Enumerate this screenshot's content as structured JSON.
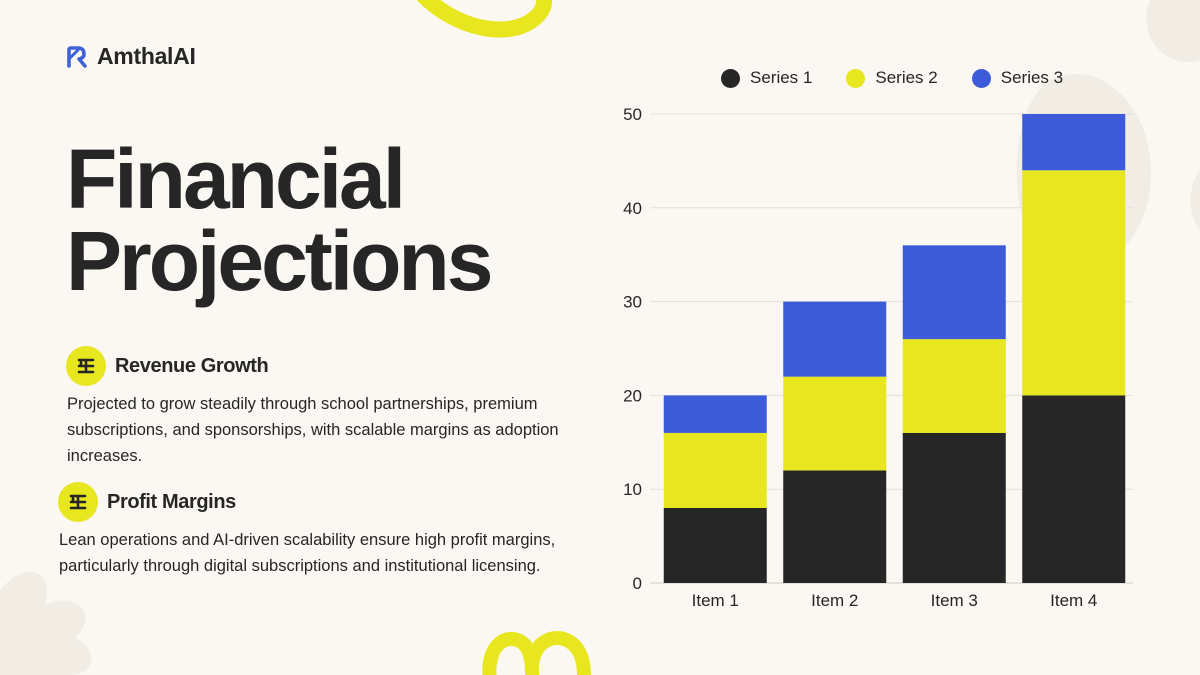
{
  "brand": {
    "name": "AmthalAI",
    "logo_icon": "stylized-r-logo-icon"
  },
  "title": {
    "line1": "Financial",
    "line2": "Projections"
  },
  "sections": [
    {
      "icon": "equalizer-glyph-icon",
      "title": "Revenue Growth",
      "desc_lines": [
        "Projected to grow steadily through school partnerships, premium",
        "subscriptions, and sponsorships, with scalable margins as adoption",
        "increases."
      ]
    },
    {
      "icon": "equalizer-glyph-icon",
      "title": "Profit Margins",
      "desc_lines": [
        "Lean operations and AI-driven scalability ensure high profit margins,",
        "particularly through digital subscriptions and institutional licensing."
      ]
    }
  ],
  "colors": {
    "accent": "#e7e61f",
    "dark": "#262626",
    "blue": "#3d5bd9",
    "logo_blue": "#3f63d6",
    "background": "#fbf8f3"
  },
  "chart_data": {
    "type": "bar",
    "stacked": true,
    "categories": [
      "Item 1",
      "Item 2",
      "Item 3",
      "Item 4"
    ],
    "series": [
      {
        "name": "Series 1",
        "color": "#262626",
        "values": [
          8,
          12,
          16,
          20
        ]
      },
      {
        "name": "Series 2",
        "color": "#e7e61f",
        "values": [
          8,
          10,
          10,
          24
        ]
      },
      {
        "name": "Series 3",
        "color": "#3d5bd9",
        "values": [
          4,
          8,
          10,
          6
        ]
      }
    ],
    "ylim": [
      0,
      50
    ],
    "yticks": [
      "0",
      "10",
      "20",
      "30",
      "40",
      "50"
    ],
    "grid": true,
    "legend_position": "top"
  }
}
